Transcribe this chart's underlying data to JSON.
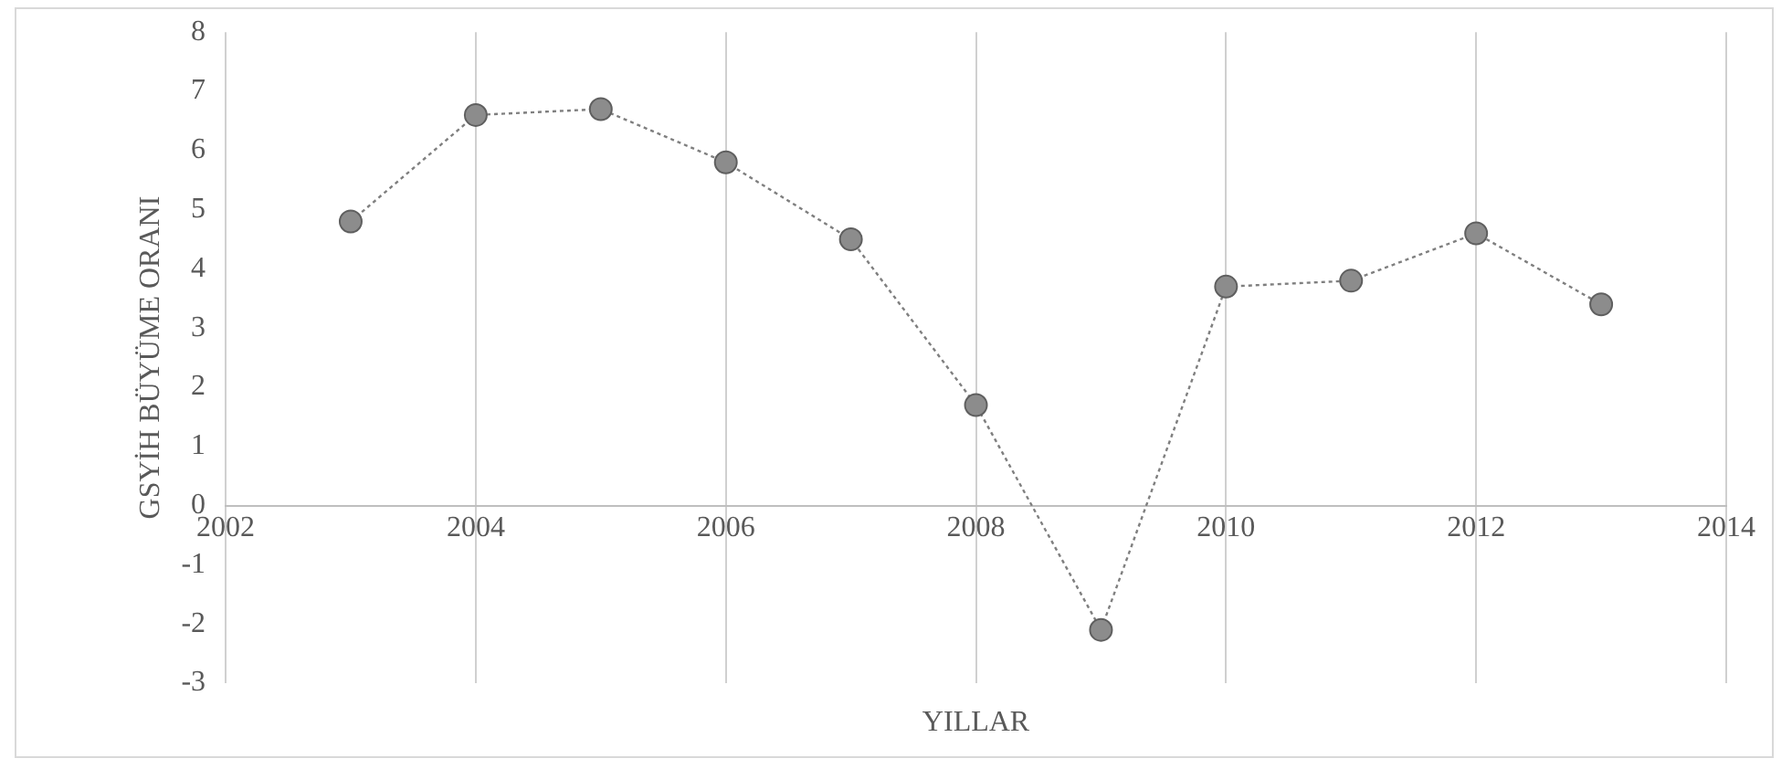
{
  "chart_data": {
    "type": "line",
    "xlabel": "YILLAR",
    "ylabel": "GSYİH BÜYÜME ORANI",
    "x": [
      2003,
      2004,
      2005,
      2006,
      2007,
      2008,
      2009,
      2010,
      2011,
      2012,
      2013
    ],
    "series": [
      {
        "color": "#7f7f7f",
        "values": [
          4.8,
          6.6,
          6.7,
          5.8,
          4.5,
          1.7,
          -2.1,
          3.7,
          3.8,
          4.6,
          3.4
        ]
      }
    ],
    "xlim": [
      2002,
      2014
    ],
    "xticks": [
      2002,
      2004,
      2006,
      2008,
      2010,
      2012,
      2014
    ],
    "ylim": [
      -3,
      8
    ],
    "yticks": [
      -3,
      -2,
      -1,
      0,
      1,
      2,
      3,
      4,
      5,
      6,
      7,
      8
    ],
    "grid": "x",
    "legend": false,
    "marker": "circle",
    "line_style": "dotted"
  }
}
